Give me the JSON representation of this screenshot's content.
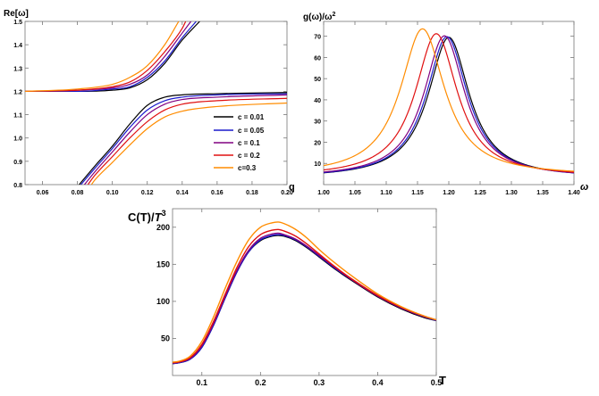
{
  "chart_data": [
    {
      "id": "panel_a",
      "type": "line",
      "xlabel": "q",
      "ylabel": "Re[ω]",
      "xlim": [
        0.05,
        0.2
      ],
      "ylim": [
        0.8,
        1.5
      ],
      "xticks": [
        0.06,
        0.08,
        0.1,
        0.12,
        0.14,
        0.16,
        0.18,
        0.2
      ],
      "xtick_labels": [
        "0.06",
        "0.08",
        "0.10",
        "0.12",
        "0.14",
        "0.16",
        "0.18",
        "0.20"
      ],
      "yticks": [
        0.8,
        0.9,
        1.0,
        1.1,
        1.2,
        1.3,
        1.4,
        1.5
      ],
      "ytick_labels": [
        "0.8",
        "0.9",
        "1.0",
        "1.1",
        "1.2",
        "1.3",
        "1.4",
        "1.5"
      ],
      "legend": {
        "placement": "center-right",
        "entries": [
          "c = 0.01",
          "c = 0.05",
          "c = 0.1",
          "c = 0.2",
          "c=0.3"
        ]
      },
      "series": [
        {
          "name": "c = 0.01",
          "color": "#000000",
          "upper": {
            "x": [
              0.05,
              0.08,
              0.1,
              0.11,
              0.12,
              0.13,
              0.14,
              0.15
            ],
            "y": [
              1.2,
              1.2,
              1.205,
              1.215,
              1.25,
              1.32,
              1.42,
              1.5
            ]
          },
          "lower": {
            "x": [
              0.081,
              0.09,
              0.1,
              0.11,
              0.12,
              0.13,
              0.14,
              0.16,
              0.2
            ],
            "y": [
              0.8,
              0.88,
              0.965,
              1.06,
              1.14,
              1.175,
              1.185,
              1.19,
              1.195
            ]
          }
        },
        {
          "name": "c = 0.05",
          "color": "#1a1acc",
          "upper": {
            "x": [
              0.05,
              0.08,
              0.1,
              0.11,
              0.12,
              0.13,
              0.14,
              0.148
            ],
            "y": [
              1.2,
              1.2,
              1.21,
              1.22,
              1.26,
              1.33,
              1.43,
              1.5
            ]
          },
          "lower": {
            "x": [
              0.082,
              0.09,
              0.1,
              0.11,
              0.12,
              0.13,
              0.14,
              0.16,
              0.2
            ],
            "y": [
              0.8,
              0.87,
              0.955,
              1.045,
              1.12,
              1.16,
              1.175,
              1.185,
              1.19
            ]
          }
        },
        {
          "name": "c = 0.1",
          "color": "#800080",
          "upper": {
            "x": [
              0.05,
              0.08,
              0.1,
              0.11,
              0.12,
              0.13,
              0.14,
              0.145
            ],
            "y": [
              1.2,
              1.205,
              1.215,
              1.23,
              1.27,
              1.35,
              1.45,
              1.5
            ]
          },
          "lower": {
            "x": [
              0.084,
              0.09,
              0.1,
              0.11,
              0.12,
              0.13,
              0.14,
              0.16,
              0.2
            ],
            "y": [
              0.8,
              0.855,
              0.94,
              1.025,
              1.1,
              1.145,
              1.165,
              1.175,
              1.185
            ]
          }
        },
        {
          "name": "c = 0.2",
          "color": "#e01010",
          "upper": {
            "x": [
              0.05,
              0.08,
              0.1,
              0.11,
              0.12,
              0.13,
              0.14,
              0.142
            ],
            "y": [
              1.2,
              1.205,
              1.22,
              1.24,
              1.29,
              1.37,
              1.47,
              1.5
            ]
          },
          "lower": {
            "x": [
              0.086,
              0.09,
              0.1,
              0.11,
              0.12,
              0.13,
              0.14,
              0.16,
              0.2
            ],
            "y": [
              0.8,
              0.84,
              0.92,
              1.0,
              1.07,
              1.12,
              1.145,
              1.16,
              1.17
            ]
          }
        },
        {
          "name": "c=0.3",
          "color": "#ff8c00",
          "upper": {
            "x": [
              0.05,
              0.08,
              0.1,
              0.11,
              0.12,
              0.13,
              0.138
            ],
            "y": [
              1.2,
              1.21,
              1.23,
              1.26,
              1.31,
              1.4,
              1.5
            ]
          },
          "lower": {
            "x": [
              0.088,
              0.09,
              0.1,
              0.11,
              0.12,
              0.13,
              0.14,
              0.16,
              0.2
            ],
            "y": [
              0.8,
              0.82,
              0.895,
              0.97,
              1.04,
              1.09,
              1.115,
              1.135,
              1.15
            ]
          }
        }
      ]
    },
    {
      "id": "panel_b",
      "type": "line",
      "xlabel": "ω",
      "ylabel": "g(ω)/ω²",
      "xlim": [
        1.0,
        1.4
      ],
      "ylim": [
        0,
        77
      ],
      "xticks": [
        1.0,
        1.05,
        1.1,
        1.15,
        1.2,
        1.25,
        1.3,
        1.35,
        1.4
      ],
      "xtick_labels": [
        "1.00",
        "1.05",
        "1.10",
        "1.15",
        "1.20",
        "1.25",
        "1.30",
        "1.35",
        "1.40"
      ],
      "yticks": [
        10,
        20,
        30,
        40,
        50,
        60,
        70
      ],
      "ytick_labels": [
        "10",
        "20",
        "30",
        "40",
        "50",
        "60",
        "70"
      ],
      "series": [
        {
          "name": "c = 0.01",
          "color": "#000000",
          "peak_x": 1.2,
          "peak_y": 69.5,
          "hwhm": 0.04,
          "baseline": 3.0
        },
        {
          "name": "c = 0.05",
          "color": "#1a1acc",
          "peak_x": 1.197,
          "peak_y": 69.8,
          "hwhm": 0.04,
          "baseline": 3.0
        },
        {
          "name": "c = 0.1",
          "color": "#800080",
          "peak_x": 1.193,
          "peak_y": 70.2,
          "hwhm": 0.04,
          "baseline": 3.2
        },
        {
          "name": "c = 0.2",
          "color": "#e01010",
          "peak_x": 1.18,
          "peak_y": 71.2,
          "hwhm": 0.041,
          "baseline": 3.6
        },
        {
          "name": "c=0.3",
          "color": "#ff8c00",
          "peak_x": 1.158,
          "peak_y": 73.5,
          "hwhm": 0.043,
          "baseline": 4.2
        }
      ]
    },
    {
      "id": "panel_c",
      "type": "line",
      "xlabel": "T",
      "ylabel": "C(T)/T³",
      "xlim": [
        0.05,
        0.5
      ],
      "ylim": [
        0,
        225
      ],
      "xticks": [
        0.1,
        0.2,
        0.3,
        0.4,
        0.5
      ],
      "xtick_labels": [
        "0.1",
        "0.2",
        "0.3",
        "0.4",
        "0.5"
      ],
      "yticks": [
        50,
        100,
        150,
        200
      ],
      "ytick_labels": [
        "50",
        "100",
        "150",
        "200"
      ],
      "x": [
        0.05,
        0.06,
        0.08,
        0.1,
        0.12,
        0.14,
        0.16,
        0.18,
        0.2,
        0.22,
        0.23,
        0.24,
        0.26,
        0.28,
        0.3,
        0.33,
        0.36,
        0.4,
        0.44,
        0.48,
        0.5
      ],
      "series": [
        {
          "name": "c = 0.01",
          "color": "#000000",
          "values": [
            16,
            17,
            22,
            38,
            68,
            105,
            140,
            167,
            182,
            188,
            189,
            188,
            182,
            172,
            160,
            142,
            126,
            106,
            90,
            78,
            74
          ]
        },
        {
          "name": "c = 0.05",
          "color": "#1a1acc",
          "values": [
            16,
            17,
            22,
            38,
            68,
            105,
            140,
            167,
            183,
            189,
            190,
            189,
            183,
            173,
            161,
            143,
            127,
            107,
            91,
            79,
            74
          ]
        },
        {
          "name": "c = 0.1",
          "color": "#800080",
          "values": [
            17,
            18,
            23,
            40,
            70,
            107,
            142,
            169,
            185,
            191,
            192,
            190,
            184,
            174,
            162,
            144,
            127,
            107,
            91,
            79,
            75
          ]
        },
        {
          "name": "c = 0.2",
          "color": "#e01010",
          "values": [
            17,
            18,
            24,
            42,
            73,
            110,
            146,
            174,
            190,
            196,
            197,
            195,
            188,
            177,
            164,
            145,
            128,
            108,
            92,
            80,
            75
          ]
        },
        {
          "name": "c=0.3",
          "color": "#ff8c00",
          "values": [
            18,
            19,
            26,
            46,
            79,
            118,
            154,
            183,
            200,
            206,
            207,
            205,
            197,
            185,
            170,
            150,
            132,
            110,
            93,
            80,
            75
          ]
        }
      ]
    }
  ]
}
